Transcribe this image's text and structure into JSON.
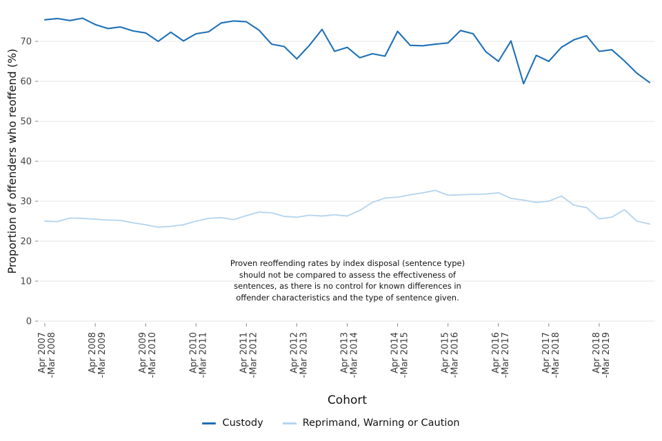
{
  "chart_data": {
    "type": "line",
    "title": "",
    "xlabel": "Cohort",
    "ylabel": "Proportion of offenders who reoffend (%)",
    "ylim": [
      0,
      78
    ],
    "yticks": [
      0,
      10,
      20,
      30,
      40,
      50,
      60,
      70
    ],
    "grid": "horizontal",
    "legend_position": "bottom",
    "x_tick_indices": [
      0,
      4,
      8,
      12,
      16,
      20,
      24,
      28,
      32,
      36,
      40,
      44
    ],
    "x_tick_labels": [
      [
        "Apr 2007",
        "-Mar 2008"
      ],
      [
        "Apr 2008",
        "-Mar 2009"
      ],
      [
        "Apr 2009",
        "-Mar 2010"
      ],
      [
        "Apr 2010",
        "-Mar 2011"
      ],
      [
        "Apr 2011",
        "-Mar 2012"
      ],
      [
        "Apr 2012",
        "-Mar 2013"
      ],
      [
        "Apr 2013",
        "-Mar 2014"
      ],
      [
        "Apr 2014",
        "-Mar 2015"
      ],
      [
        "Apr 2015",
        "-Mar 2016"
      ],
      [
        "Apr 2016",
        "-Mar 2017"
      ],
      [
        "Apr 2017",
        "-Mar 2018"
      ],
      [
        "Apr 2018",
        "-Mar 2019"
      ]
    ],
    "series": [
      {
        "name": "Custody",
        "color": "#1d6fb7",
        "values": [
          75.4,
          75.7,
          75.2,
          75.8,
          74.2,
          73.2,
          73.6,
          72.6,
          72.1,
          70.0,
          72.3,
          70.1,
          71.9,
          72.4,
          74.6,
          75.1,
          74.9,
          72.8,
          69.3,
          68.7,
          65.6,
          69.0,
          73.0,
          67.5,
          68.5,
          65.9,
          66.9,
          66.3,
          72.5,
          69.0,
          68.9,
          69.3,
          69.6,
          72.7,
          71.9,
          67.4,
          65.0,
          70.1,
          59.4,
          66.5,
          65.0,
          68.5,
          70.4,
          71.4,
          67.5,
          67.9,
          65.1,
          62.0,
          59.7
        ]
      },
      {
        "name": "Reprimand, Warning or Caution",
        "color": "#b5d5ef",
        "values": [
          25.0,
          24.9,
          25.8,
          25.7,
          25.5,
          25.3,
          25.2,
          24.6,
          24.1,
          23.5,
          23.7,
          24.1,
          25.0,
          25.7,
          25.9,
          25.4,
          26.4,
          27.3,
          27.1,
          26.2,
          26.0,
          26.5,
          26.3,
          26.6,
          26.3,
          27.7,
          29.7,
          30.8,
          31.0,
          31.6,
          32.1,
          32.7,
          31.5,
          31.6,
          31.7,
          31.8,
          32.1,
          30.7,
          30.3,
          29.7,
          30.0,
          31.3,
          29.0,
          28.4,
          25.6,
          26.0,
          27.9,
          25.0,
          24.3
        ]
      }
    ],
    "annotation": {
      "lines": [
        "Proven reoffending rates by index disposal (sentence type)",
        "should not be compared to assess the effectiveness of",
        "sentences, as there is no control for known differences in",
        "offender characteristics and the type of sentence given."
      ]
    }
  }
}
